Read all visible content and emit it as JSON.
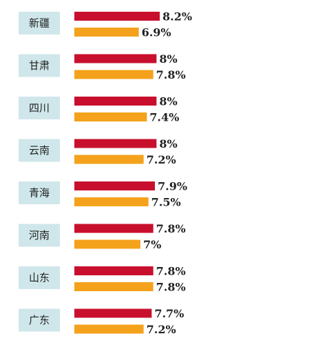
{
  "chart_data": {
    "type": "bar",
    "orientation": "horizontal",
    "categories": [
      "新疆",
      "甘肃",
      "四川",
      "云南",
      "青海",
      "河南",
      "山东",
      "广东"
    ],
    "series": [
      {
        "values": [
          8.2,
          8,
          8,
          8,
          7.9,
          7.8,
          7.8,
          7.7
        ],
        "labels": [
          "8.2%",
          "8%",
          "8%",
          "8%",
          "7.9%",
          "7.8%",
          "7.8%",
          "7.7%"
        ],
        "color": "#c8102e"
      },
      {
        "values": [
          6.9,
          7.8,
          7.4,
          7.2,
          7.5,
          7,
          7.8,
          7.2
        ],
        "labels": [
          "6.9%",
          "7.8%",
          "7.4%",
          "7.2%",
          "7.5%",
          "7%",
          "7.8%",
          "7.2%"
        ],
        "color": "#f4a21b"
      }
    ],
    "unit": "%",
    "title": "",
    "xlabel": "",
    "ylabel": "",
    "grid": false,
    "legend": "none"
  }
}
